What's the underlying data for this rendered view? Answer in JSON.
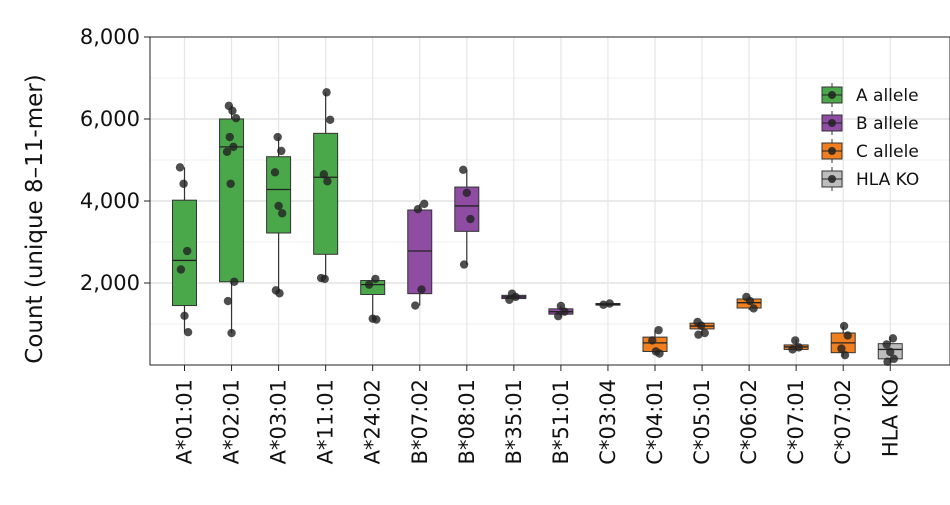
{
  "chart_data": {
    "type": "boxplot",
    "ylabel": "Count (unique 8–11-mer)",
    "xlabel": "",
    "ylim": [
      0,
      8000
    ],
    "yticks": [
      2000,
      4000,
      6000,
      8000
    ],
    "ytick_labels": [
      "2,000",
      "4,000",
      "6,000",
      "8,000"
    ],
    "grid": true,
    "legend_position": "top-right",
    "legend": [
      {
        "label": "A allele",
        "color": "#4aa84a"
      },
      {
        "label": "B allele",
        "color": "#8e4ca3"
      },
      {
        "label": "C allele",
        "color": "#f0801f"
      },
      {
        "label": "HLA KO",
        "color": "#bdbdbd"
      }
    ],
    "categories": [
      {
        "label": "A*01:01",
        "group": "A allele",
        "min": 800,
        "q1": 1450,
        "median": 2550,
        "q3": 4020,
        "max": 4820,
        "points": [
          4820,
          4420,
          2780,
          2330,
          1200,
          800
        ]
      },
      {
        "label": "A*02:01",
        "group": "A allele",
        "min": 780,
        "q1": 2030,
        "median": 5320,
        "q3": 6000,
        "max": 6320,
        "points": [
          6320,
          6200,
          6020,
          5560,
          5320,
          5200,
          4420,
          2030,
          1560,
          780
        ]
      },
      {
        "label": "A*03:01",
        "group": "A allele",
        "min": 1750,
        "q1": 3220,
        "median": 4280,
        "q3": 5080,
        "max": 5560,
        "points": [
          5560,
          5220,
          4700,
          3880,
          3700,
          1820,
          1750
        ]
      },
      {
        "label": "A*11:01",
        "group": "A allele",
        "min": 2100,
        "q1": 2700,
        "median": 4580,
        "q3": 5650,
        "max": 6650,
        "points": [
          6650,
          5980,
          4650,
          4480,
          2120,
          2100
        ]
      },
      {
        "label": "A*24:02",
        "group": "A allele",
        "min": 1100,
        "q1": 1720,
        "median": 1960,
        "q3": 2060,
        "max": 2100,
        "points": [
          2100,
          1960,
          1130,
          1110
        ]
      },
      {
        "label": "B*07:02",
        "group": "B allele",
        "min": 1450,
        "q1": 1740,
        "median": 2780,
        "q3": 3780,
        "max": 3930,
        "points": [
          3930,
          3800,
          1840,
          1450
        ]
      },
      {
        "label": "B*08:01",
        "group": "B allele",
        "min": 2450,
        "q1": 3260,
        "median": 3880,
        "q3": 4340,
        "max": 4760,
        "points": [
          4760,
          4200,
          3560,
          2450
        ]
      },
      {
        "label": "B*35:01",
        "group": "B allele",
        "min": 1580,
        "q1": 1620,
        "median": 1660,
        "q3": 1700,
        "max": 1740,
        "points": [
          1740,
          1660,
          1590
        ]
      },
      {
        "label": "B*51:01",
        "group": "B allele",
        "min": 1180,
        "q1": 1240,
        "median": 1300,
        "q3": 1370,
        "max": 1440,
        "points": [
          1440,
          1300,
          1190
        ]
      },
      {
        "label": "C*03:04",
        "group": "C allele",
        "min": 1430,
        "q1": 1460,
        "median": 1480,
        "q3": 1500,
        "max": 1520,
        "points": [
          1500,
          1470
        ]
      },
      {
        "label": "C*04:01",
        "group": "C allele",
        "min": 280,
        "q1": 330,
        "median": 540,
        "q3": 680,
        "max": 850,
        "points": [
          850,
          600,
          330,
          280
        ]
      },
      {
        "label": "C*05:01",
        "group": "C allele",
        "min": 730,
        "q1": 880,
        "median": 950,
        "q3": 1020,
        "max": 1060,
        "points": [
          1050,
          960,
          780,
          740
        ]
      },
      {
        "label": "C*06:02",
        "group": "C allele",
        "min": 1340,
        "q1": 1390,
        "median": 1520,
        "q3": 1610,
        "max": 1680,
        "points": [
          1660,
          1560,
          1380
        ]
      },
      {
        "label": "C*07:01",
        "group": "C allele",
        "min": 340,
        "q1": 380,
        "median": 440,
        "q3": 490,
        "max": 620,
        "points": [
          600,
          430,
          380
        ]
      },
      {
        "label": "C*07:02",
        "group": "C allele",
        "min": 200,
        "q1": 300,
        "median": 540,
        "q3": 780,
        "max": 960,
        "points": [
          950,
          720,
          400,
          240
        ]
      },
      {
        "label": "HLA KO",
        "group": "HLA KO",
        "min": 50,
        "q1": 150,
        "median": 380,
        "q3": 520,
        "max": 680,
        "points": [
          650,
          500,
          320,
          150,
          80
        ]
      }
    ]
  }
}
